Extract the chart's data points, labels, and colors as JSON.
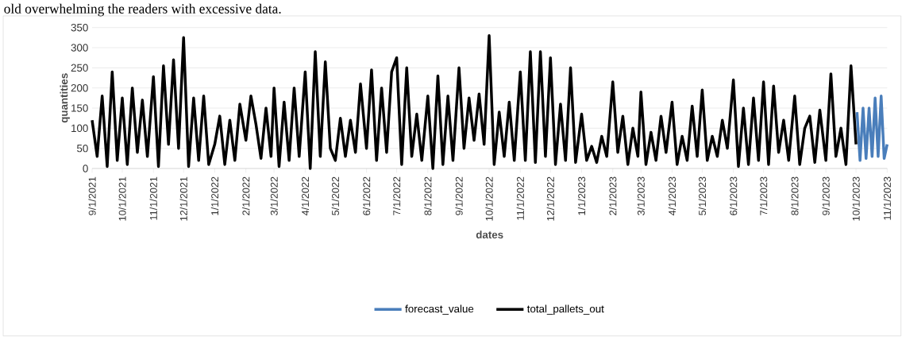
{
  "chart_data": {
    "type": "line",
    "xlabel": "dates",
    "ylabel": "quantities",
    "annotations": [
      "old overwhelming the readers with excessive data."
    ],
    "xlim": [
      "2021-09-01",
      "2023-11-01"
    ],
    "ylim": [
      0,
      350
    ],
    "yticks": [
      0,
      50,
      100,
      150,
      200,
      250,
      300,
      350
    ],
    "xticks": [
      {
        "value": "2021-09-01",
        "label": "9/1/2021"
      },
      {
        "value": "2021-10-01",
        "label": "10/1/2021"
      },
      {
        "value": "2021-11-01",
        "label": "11/1/2021"
      },
      {
        "value": "2021-12-01",
        "label": "12/1/2021"
      },
      {
        "value": "2022-01-01",
        "label": "1/1/2022"
      },
      {
        "value": "2022-02-01",
        "label": "2/1/2022"
      },
      {
        "value": "2022-03-01",
        "label": "3/1/2022"
      },
      {
        "value": "2022-04-01",
        "label": "4/1/2022"
      },
      {
        "value": "2022-05-01",
        "label": "5/1/2022"
      },
      {
        "value": "2022-06-01",
        "label": "6/1/2022"
      },
      {
        "value": "2022-07-01",
        "label": "7/1/2022"
      },
      {
        "value": "2022-08-01",
        "label": "8/1/2022"
      },
      {
        "value": "2022-09-01",
        "label": "9/1/2022"
      },
      {
        "value": "2022-10-01",
        "label": "10/1/2022"
      },
      {
        "value": "2022-11-01",
        "label": "11/1/2022"
      },
      {
        "value": "2022-12-01",
        "label": "12/1/2022"
      },
      {
        "value": "2023-01-01",
        "label": "1/1/2023"
      },
      {
        "value": "2023-02-01",
        "label": "2/1/2023"
      },
      {
        "value": "2023-03-01",
        "label": "3/1/2023"
      },
      {
        "value": "2023-04-01",
        "label": "4/1/2023"
      },
      {
        "value": "2023-05-01",
        "label": "5/1/2023"
      },
      {
        "value": "2023-06-01",
        "label": "6/1/2023"
      },
      {
        "value": "2023-07-01",
        "label": "7/1/2023"
      },
      {
        "value": "2023-08-01",
        "label": "8/1/2023"
      },
      {
        "value": "2023-09-01",
        "label": "9/1/2023"
      },
      {
        "value": "2023-10-01",
        "label": "10/1/2023"
      },
      {
        "value": "2023-11-01",
        "label": "11/1/2023"
      }
    ],
    "grid": "y",
    "legend": "bottom",
    "marker": "none",
    "line_style": "solid",
    "series": [
      {
        "name": "forecast_value",
        "color": "#4a7ebb",
        "x": [
          "2023-10-02",
          "2023-10-05",
          "2023-10-08",
          "2023-10-11",
          "2023-10-14",
          "2023-10-17",
          "2023-10-20",
          "2023-10-23",
          "2023-10-26",
          "2023-10-29",
          "2023-11-01"
        ],
        "values": [
          140,
          20,
          150,
          25,
          150,
          30,
          175,
          30,
          180,
          25,
          60
        ]
      },
      {
        "name": "total_pallets_out",
        "color": "#000000",
        "x": [
          "2021-09-01",
          "2021-09-06",
          "2021-09-11",
          "2021-09-16",
          "2021-09-21",
          "2021-09-26",
          "2021-10-01",
          "2021-10-06",
          "2021-10-11",
          "2021-10-16",
          "2021-10-21",
          "2021-10-26",
          "2021-11-01",
          "2021-11-06",
          "2021-11-11",
          "2021-11-16",
          "2021-11-21",
          "2021-11-26",
          "2021-12-01",
          "2021-12-06",
          "2021-12-11",
          "2021-12-16",
          "2021-12-21",
          "2021-12-26",
          "2022-01-01",
          "2022-01-06",
          "2022-01-11",
          "2022-01-16",
          "2022-01-21",
          "2022-01-26",
          "2022-02-01",
          "2022-02-06",
          "2022-02-11",
          "2022-02-16",
          "2022-02-21",
          "2022-02-26",
          "2022-03-01",
          "2022-03-06",
          "2022-03-11",
          "2022-03-16",
          "2022-03-21",
          "2022-03-26",
          "2022-04-01",
          "2022-04-06",
          "2022-04-11",
          "2022-04-16",
          "2022-04-21",
          "2022-04-26",
          "2022-05-01",
          "2022-05-06",
          "2022-05-11",
          "2022-05-16",
          "2022-05-21",
          "2022-05-26",
          "2022-06-01",
          "2022-06-06",
          "2022-06-11",
          "2022-06-16",
          "2022-06-21",
          "2022-06-26",
          "2022-07-01",
          "2022-07-06",
          "2022-07-11",
          "2022-07-16",
          "2022-07-21",
          "2022-07-26",
          "2022-08-01",
          "2022-08-06",
          "2022-08-11",
          "2022-08-16",
          "2022-08-21",
          "2022-08-26",
          "2022-09-01",
          "2022-09-06",
          "2022-09-11",
          "2022-09-16",
          "2022-09-21",
          "2022-09-26",
          "2022-10-01",
          "2022-10-06",
          "2022-10-11",
          "2022-10-16",
          "2022-10-21",
          "2022-10-26",
          "2022-11-01",
          "2022-11-06",
          "2022-11-11",
          "2022-11-16",
          "2022-11-21",
          "2022-11-26",
          "2022-12-01",
          "2022-12-06",
          "2022-12-11",
          "2022-12-16",
          "2022-12-21",
          "2022-12-26",
          "2023-01-01",
          "2023-01-06",
          "2023-01-11",
          "2023-01-16",
          "2023-01-21",
          "2023-01-26",
          "2023-02-01",
          "2023-02-06",
          "2023-02-11",
          "2023-02-16",
          "2023-02-21",
          "2023-02-26",
          "2023-03-01",
          "2023-03-06",
          "2023-03-11",
          "2023-03-16",
          "2023-03-21",
          "2023-03-26",
          "2023-04-01",
          "2023-04-06",
          "2023-04-11",
          "2023-04-16",
          "2023-04-21",
          "2023-04-26",
          "2023-05-01",
          "2023-05-06",
          "2023-05-11",
          "2023-05-16",
          "2023-05-21",
          "2023-05-26",
          "2023-06-01",
          "2023-06-06",
          "2023-06-11",
          "2023-06-16",
          "2023-06-21",
          "2023-06-26",
          "2023-07-01",
          "2023-07-06",
          "2023-07-11",
          "2023-07-16",
          "2023-07-21",
          "2023-07-26",
          "2023-08-01",
          "2023-08-06",
          "2023-08-11",
          "2023-08-16",
          "2023-08-21",
          "2023-08-26",
          "2023-09-01",
          "2023-09-06",
          "2023-09-11",
          "2023-09-16",
          "2023-09-21",
          "2023-09-26",
          "2023-10-01"
        ],
        "values": [
          120,
          30,
          180,
          5,
          240,
          20,
          175,
          10,
          200,
          40,
          170,
          30,
          228,
          5,
          255,
          60,
          270,
          50,
          325,
          5,
          175,
          20,
          180,
          10,
          60,
          130,
          10,
          120,
          20,
          160,
          70,
          180,
          110,
          25,
          150,
          30,
          200,
          5,
          165,
          20,
          200,
          30,
          240,
          0,
          290,
          30,
          265,
          50,
          20,
          125,
          30,
          120,
          40,
          210,
          50,
          245,
          20,
          200,
          40,
          240,
          275,
          10,
          250,
          30,
          135,
          20,
          180,
          0,
          230,
          10,
          180,
          20,
          250,
          50,
          175,
          70,
          185,
          60,
          330,
          10,
          140,
          30,
          165,
          20,
          240,
          20,
          290,
          15,
          290,
          30,
          275,
          10,
          160,
          20,
          250,
          15,
          135,
          20,
          55,
          15,
          80,
          30,
          215,
          40,
          130,
          10,
          100,
          30,
          190,
          10,
          90,
          20,
          130,
          40,
          165,
          10,
          80,
          20,
          155,
          30,
          195,
          20,
          80,
          30,
          120,
          50,
          220,
          5,
          150,
          10,
          175,
          20,
          215,
          10,
          205,
          40,
          120,
          20,
          180,
          10,
          100,
          130,
          15,
          145,
          20,
          235,
          30,
          100,
          10,
          255,
          60
        ]
      }
    ]
  }
}
